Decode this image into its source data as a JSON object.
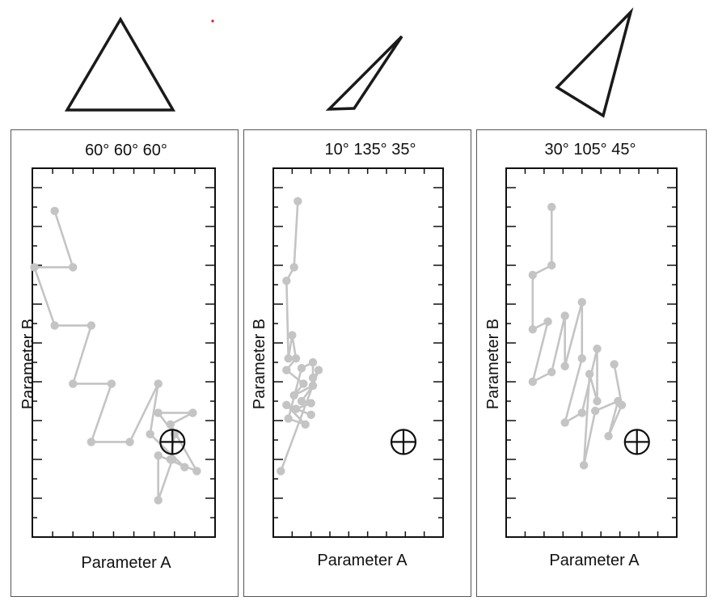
{
  "chart_data": [
    {
      "type": "line",
      "title": "60° 60° 60°",
      "xlabel": "Parameter A",
      "ylabel": "Parameter B",
      "xlim": [
        0,
        9
      ],
      "ylim": [
        0,
        19
      ],
      "grid": false,
      "triangle": "equilateral",
      "target": {
        "x": 6.9,
        "y": 4.9
      },
      "points": [
        {
          "x": 1.1,
          "y": 16.8
        },
        {
          "x": 2.0,
          "y": 13.9
        },
        {
          "x": 0.1,
          "y": 13.9
        },
        {
          "x": 1.1,
          "y": 10.9
        },
        {
          "x": 2.9,
          "y": 10.9
        },
        {
          "x": 2.0,
          "y": 7.9
        },
        {
          "x": 3.9,
          "y": 7.9
        },
        {
          "x": 2.9,
          "y": 4.9
        },
        {
          "x": 4.8,
          "y": 4.9
        },
        {
          "x": 6.2,
          "y": 7.9
        },
        {
          "x": 5.8,
          "y": 5.3
        },
        {
          "x": 7.5,
          "y": 3.6
        },
        {
          "x": 6.8,
          "y": 4.0
        },
        {
          "x": 7.0,
          "y": 5.3
        },
        {
          "x": 6.2,
          "y": 6.4
        },
        {
          "x": 7.9,
          "y": 6.4
        },
        {
          "x": 6.8,
          "y": 5.8
        },
        {
          "x": 8.1,
          "y": 3.4
        },
        {
          "x": 6.2,
          "y": 4.2
        },
        {
          "x": 6.2,
          "y": 1.9
        },
        {
          "x": 6.9,
          "y": 4.0
        }
      ]
    },
    {
      "type": "line",
      "title": "10° 135° 35°",
      "xlabel": "Parameter A",
      "ylabel": "Parameter B",
      "xlim": [
        0,
        9
      ],
      "ylim": [
        0,
        19
      ],
      "grid": false,
      "triangle": "obtuse-thin",
      "target": {
        "x": 6.9,
        "y": 4.9
      },
      "points": [
        {
          "x": 1.3,
          "y": 17.3
        },
        {
          "x": 1.1,
          "y": 13.9
        },
        {
          "x": 0.7,
          "y": 13.2
        },
        {
          "x": 0.8,
          "y": 9.2
        },
        {
          "x": 1.0,
          "y": 10.4
        },
        {
          "x": 1.2,
          "y": 9.2
        },
        {
          "x": 0.7,
          "y": 8.6
        },
        {
          "x": 1.6,
          "y": 7.9
        },
        {
          "x": 1.1,
          "y": 7.3
        },
        {
          "x": 2.1,
          "y": 7.8
        },
        {
          "x": 1.5,
          "y": 7.0
        },
        {
          "x": 2.0,
          "y": 6.9
        },
        {
          "x": 1.2,
          "y": 6.6
        },
        {
          "x": 2.0,
          "y": 6.3
        },
        {
          "x": 0.7,
          "y": 6.8
        },
        {
          "x": 1.7,
          "y": 5.8
        },
        {
          "x": 0.8,
          "y": 6.1
        },
        {
          "x": 1.5,
          "y": 8.7
        },
        {
          "x": 2.1,
          "y": 9.0
        },
        {
          "x": 2.1,
          "y": 8.2
        },
        {
          "x": 2.4,
          "y": 8.6
        },
        {
          "x": 0.4,
          "y": 3.4
        }
      ]
    },
    {
      "type": "line",
      "title": "30° 105° 45°",
      "xlabel": "Parameter A",
      "ylabel": "Parameter B",
      "xlim": [
        0,
        9
      ],
      "ylim": [
        0,
        19
      ],
      "grid": false,
      "triangle": "obtuse-wide",
      "target": {
        "x": 6.9,
        "y": 4.9
      },
      "points": [
        {
          "x": 2.4,
          "y": 17.0
        },
        {
          "x": 2.4,
          "y": 14.0
        },
        {
          "x": 1.4,
          "y": 13.5
        },
        {
          "x": 1.4,
          "y": 10.7
        },
        {
          "x": 2.2,
          "y": 11.1
        },
        {
          "x": 1.4,
          "y": 8.0
        },
        {
          "x": 2.4,
          "y": 8.5
        },
        {
          "x": 3.1,
          "y": 11.4
        },
        {
          "x": 3.1,
          "y": 8.8
        },
        {
          "x": 4.0,
          "y": 12.1
        },
        {
          "x": 4.0,
          "y": 9.2
        },
        {
          "x": 3.1,
          "y": 5.9
        },
        {
          "x": 4.0,
          "y": 6.4
        },
        {
          "x": 4.8,
          "y": 9.7
        },
        {
          "x": 4.8,
          "y": 7.0
        },
        {
          "x": 4.4,
          "y": 8.4
        },
        {
          "x": 4.1,
          "y": 3.7
        },
        {
          "x": 4.7,
          "y": 6.5
        },
        {
          "x": 5.9,
          "y": 7.0
        },
        {
          "x": 5.4,
          "y": 5.2
        },
        {
          "x": 6.1,
          "y": 6.8
        },
        {
          "x": 5.7,
          "y": 8.9
        }
      ]
    }
  ]
}
